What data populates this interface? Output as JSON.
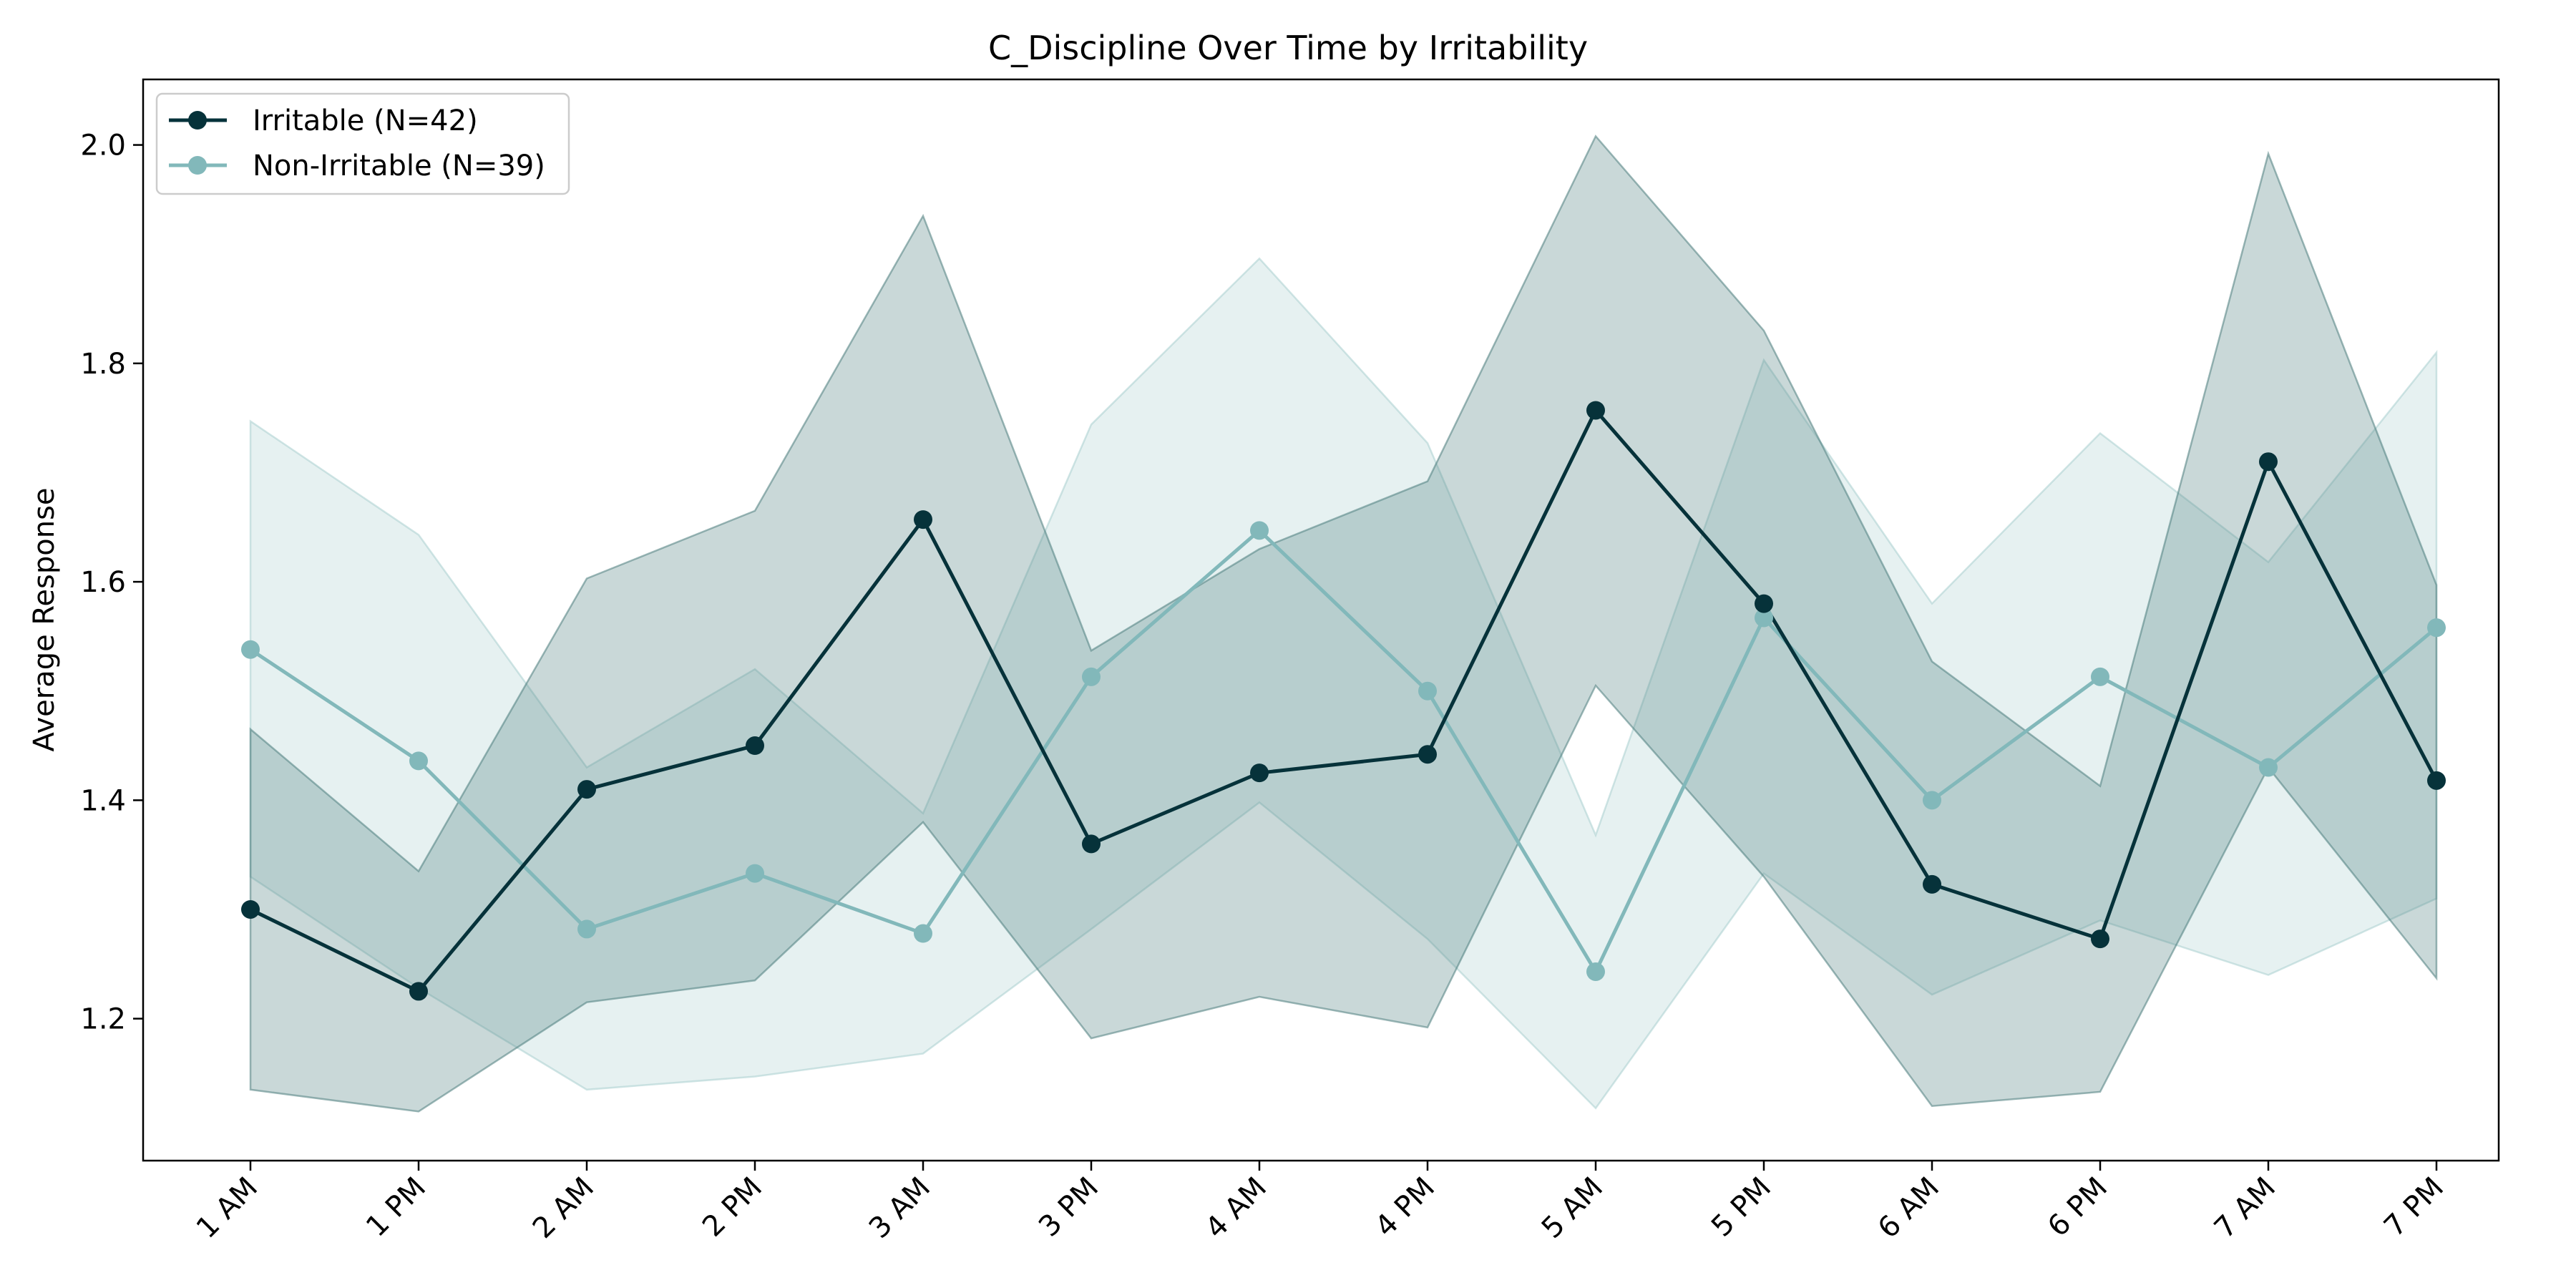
{
  "chart_data": {
    "type": "line",
    "title": "C_Discipline Over Time by Irritability",
    "xlabel": "",
    "ylabel": "Average Response",
    "categories": [
      "1 AM",
      "1 PM",
      "2 AM",
      "2 PM",
      "3 AM",
      "3 PM",
      "4 AM",
      "4 PM",
      "5 AM",
      "5 PM",
      "6 AM",
      "6 PM",
      "7 AM",
      "7 PM"
    ],
    "ylim": [
      1.07,
      2.06
    ],
    "yticks": [
      1.2,
      1.4,
      1.6,
      1.8,
      2.0
    ],
    "ytick_labels": [
      "1.2",
      "1.4",
      "1.6",
      "1.8",
      "2.0"
    ],
    "grid": false,
    "legend_position": "top-left",
    "series": [
      {
        "name": "Irritable (N=42)",
        "color": "#06323a",
        "band_color": "#4d7e7e",
        "band_opacity": 0.3,
        "values": [
          1.3,
          1.225,
          1.41,
          1.45,
          1.657,
          1.36,
          1.425,
          1.442,
          1.757,
          1.58,
          1.323,
          1.273,
          1.71,
          1.418
        ],
        "lower": [
          1.135,
          1.115,
          1.215,
          1.235,
          1.38,
          1.182,
          1.22,
          1.192,
          1.505,
          1.33,
          1.12,
          1.133,
          1.43,
          1.237
        ],
        "upper": [
          1.465,
          1.335,
          1.603,
          1.665,
          1.935,
          1.537,
          1.63,
          1.692,
          2.008,
          1.83,
          1.527,
          1.413,
          1.992,
          1.597
        ]
      },
      {
        "name": "Non-Irritable (N=39)",
        "color": "#82b8ba",
        "band_color": "#a6cdce",
        "band_opacity": 0.28,
        "values": [
          1.538,
          1.436,
          1.282,
          1.333,
          1.278,
          1.513,
          1.647,
          1.5,
          1.243,
          1.567,
          1.4,
          1.513,
          1.43,
          1.558
        ],
        "lower": [
          1.33,
          1.228,
          1.135,
          1.147,
          1.168,
          1.282,
          1.398,
          1.273,
          1.118,
          1.333,
          1.222,
          1.29,
          1.24,
          1.31
        ],
        "upper": [
          1.747,
          1.643,
          1.43,
          1.52,
          1.388,
          1.744,
          1.896,
          1.727,
          1.368,
          1.803,
          1.58,
          1.736,
          1.618,
          1.81
        ]
      }
    ]
  }
}
